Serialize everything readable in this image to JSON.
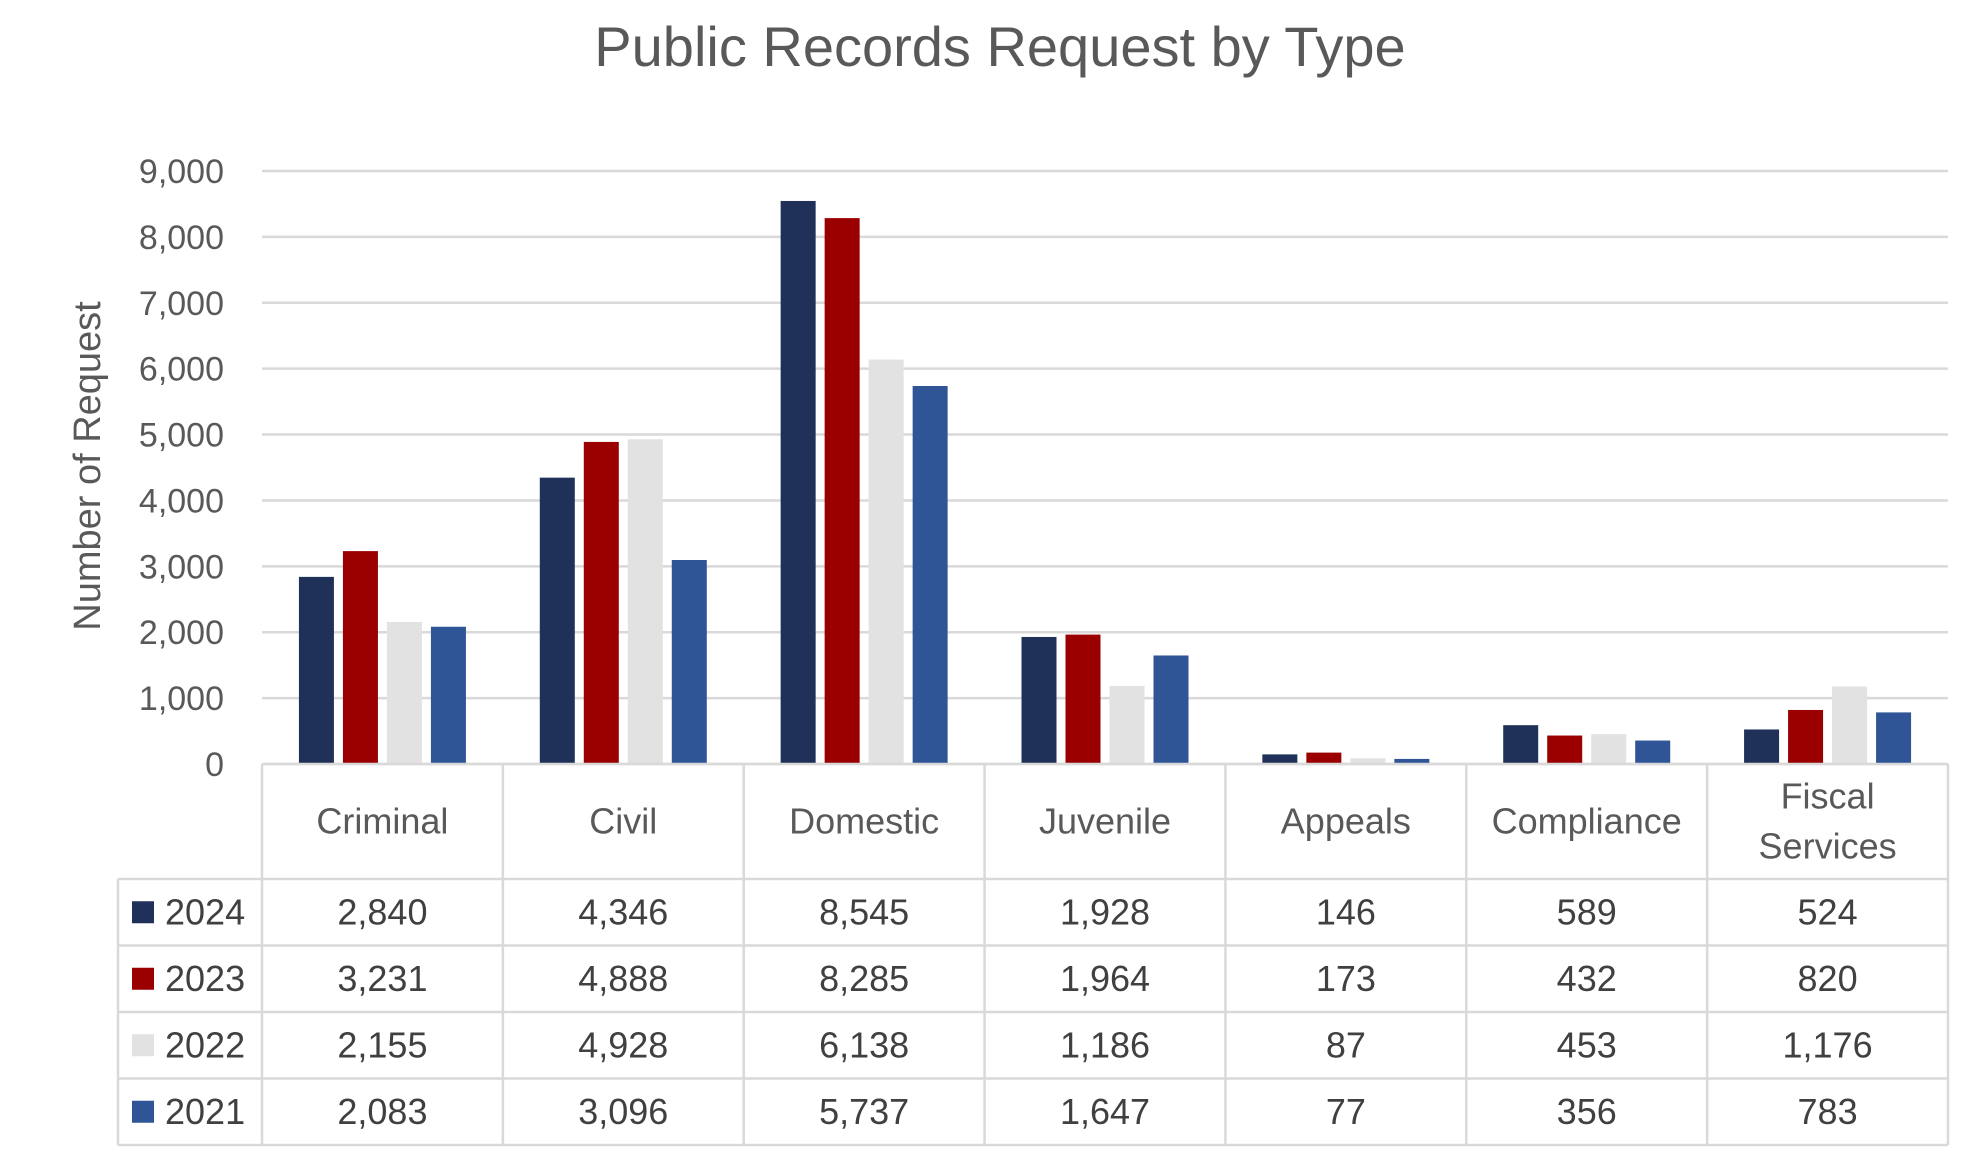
{
  "chart_data": {
    "type": "bar",
    "title": "Public Records Request by Type",
    "xlabel": "",
    "ylabel": "Number of Request",
    "ylim": [
      0,
      9000
    ],
    "yticks": [
      "0",
      "1,000",
      "2,000",
      "3,000",
      "4,000",
      "5,000",
      "6,000",
      "7,000",
      "8,000",
      "9,000"
    ],
    "grid": true,
    "legend": "data-table",
    "categories": [
      [
        "Criminal"
      ],
      [
        "Civil"
      ],
      [
        "Domestic"
      ],
      [
        "Juvenile"
      ],
      [
        "Appeals"
      ],
      [
        "Compliance"
      ],
      [
        "Fiscal",
        "Services"
      ]
    ],
    "series": [
      {
        "name": "2024",
        "color": "#1f3158",
        "values": [
          2840,
          4346,
          8545,
          1928,
          146,
          589,
          524
        ],
        "labels": [
          "2,840",
          "4,346",
          "8,545",
          "1,928",
          "146",
          "589",
          "524"
        ]
      },
      {
        "name": "2023",
        "color": "#9a0000",
        "values": [
          3231,
          4888,
          8285,
          1964,
          173,
          432,
          820
        ],
        "labels": [
          "3,231",
          "4,888",
          "8,285",
          "1,964",
          "173",
          "432",
          "820"
        ]
      },
      {
        "name": "2022",
        "color": "#e2e2e2",
        "values": [
          2155,
          4928,
          6138,
          1186,
          87,
          453,
          1176
        ],
        "labels": [
          "2,155",
          "4,928",
          "6,138",
          "1,186",
          "87",
          "453",
          "1,176"
        ]
      },
      {
        "name": "2021",
        "color": "#2f5597",
        "values": [
          2083,
          3096,
          5737,
          1647,
          77,
          356,
          783
        ],
        "labels": [
          "2,083",
          "3,096",
          "5,737",
          "1,647",
          "77",
          "356",
          "783"
        ]
      }
    ]
  }
}
